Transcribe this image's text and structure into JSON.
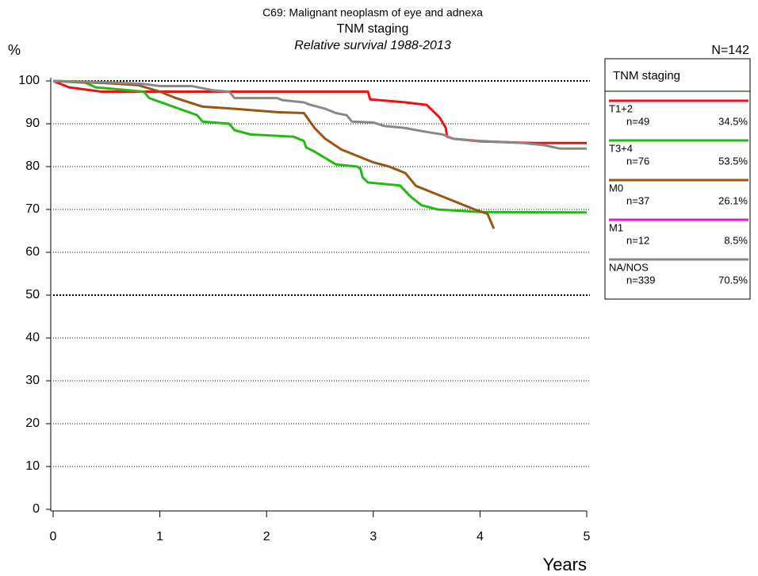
{
  "chart_data": {
    "type": "line",
    "title": "C69: Malignant neoplasm of eye and adnexa",
    "subtitle": "TNM staging",
    "subtitle2": "Relative survival 1988-2013",
    "y_label": "%",
    "x_label": "Years",
    "total": "N=142",
    "legend_title": "TNM staging",
    "legend": "right",
    "grid": true,
    "major_grid": [
      50,
      100
    ],
    "xlim": [
      0,
      5
    ],
    "xticks": [
      0,
      1,
      2,
      3,
      4,
      5
    ],
    "ylim": [
      0,
      100
    ],
    "yticks": [
      0,
      10,
      20,
      30,
      40,
      50,
      60,
      70,
      80,
      90,
      100
    ],
    "series": [
      {
        "name": "T1+2",
        "color": "#ee1111",
        "legend_n": "n=49",
        "legend_pct": "34.5%",
        "x": [
          0,
          0.15,
          0.45,
          2.95,
          2.97,
          3.3,
          3.5,
          3.62,
          3.68,
          3.69,
          3.75,
          4.0,
          4.5,
          5.0
        ],
        "values": [
          100,
          98.5,
          97.5,
          97.5,
          95.7,
          95,
          94.4,
          91.5,
          89,
          87,
          86.5,
          85.9,
          85.5,
          85.5
        ]
      },
      {
        "name": "T3+4",
        "color": "#22bb11",
        "legend_n": "n=76",
        "legend_pct": "53.5%",
        "x": [
          0,
          0.3,
          0.4,
          0.85,
          0.9,
          1.35,
          1.4,
          1.65,
          1.7,
          1.85,
          2.25,
          2.35,
          2.37,
          2.45,
          2.65,
          2.85,
          2.88,
          2.9,
          2.95,
          3.25,
          3.35,
          3.45,
          3.6,
          4.0,
          5.0
        ],
        "values": [
          100,
          99.6,
          98.5,
          97.5,
          96,
          92,
          90.5,
          90,
          88.5,
          87.5,
          87,
          86,
          84.5,
          83.5,
          80.5,
          80,
          79.5,
          77.5,
          76.3,
          75.6,
          73,
          71,
          70,
          69.4,
          69.3
        ]
      },
      {
        "name": "M0",
        "color": "#995511",
        "legend_n": "n=37",
        "legend_pct": "26.1%",
        "x": [
          0,
          0.5,
          0.8,
          1.0,
          1.15,
          1.4,
          1.7,
          2.1,
          2.35,
          2.45,
          2.55,
          2.7,
          2.85,
          3.0,
          3.15,
          3.3,
          3.4,
          3.55,
          3.7,
          3.95,
          4.07,
          4.13
        ],
        "values": [
          100,
          99.5,
          99,
          97.5,
          96,
          94,
          93.5,
          92.7,
          92.5,
          89,
          86.5,
          84,
          82.5,
          81,
          80,
          78.5,
          75.5,
          74,
          72.5,
          70,
          69,
          65.5
        ]
      },
      {
        "name": "M1",
        "color": "#ee11dd",
        "legend_n": "n=12",
        "legend_pct": "8.5%",
        "x": [],
        "values": []
      },
      {
        "name": "NA/NOS",
        "color": "#888888",
        "legend_n": "n=339",
        "legend_pct": "70.5%",
        "x": [
          0,
          0.5,
          0.85,
          1.0,
          1.3,
          1.5,
          1.65,
          1.7,
          2.1,
          2.15,
          2.35,
          2.4,
          2.55,
          2.65,
          2.75,
          2.8,
          3.0,
          3.1,
          3.3,
          3.45,
          3.65,
          3.75,
          4.0,
          4.4,
          4.6,
          4.75,
          5.0
        ],
        "values": [
          100,
          99.7,
          99.3,
          98.8,
          98.8,
          97.8,
          97.5,
          96,
          96,
          95.5,
          95,
          94.5,
          93.5,
          92.5,
          92,
          90.5,
          90.3,
          89.5,
          89,
          88.3,
          87.5,
          86.5,
          86,
          85.5,
          85,
          84.2,
          84.2
        ]
      }
    ]
  }
}
